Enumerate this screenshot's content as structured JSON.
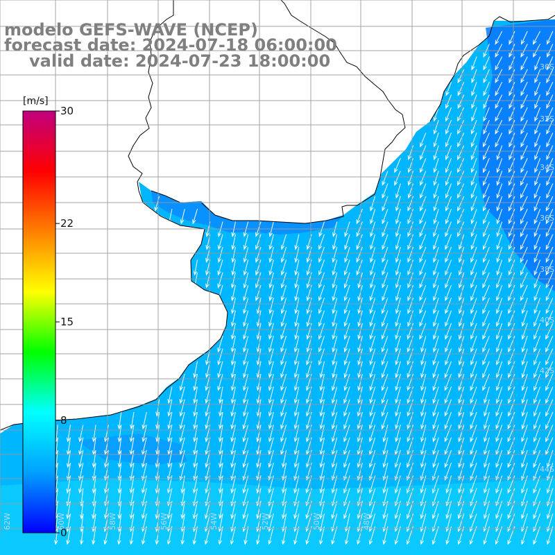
{
  "title": {
    "model": "modelo GEFS-WAVE (NCEP)",
    "forecast": "forecast date: 2024-07-18 06:00:00",
    "valid": "valid date: 2024-07-23 18:00:00"
  },
  "colorbar": {
    "unit": "[m/s]",
    "min": 0,
    "max": 30,
    "ticks": [
      {
        "label": "30",
        "value": 30
      },
      {
        "label": "22",
        "value": 22
      },
      {
        "label": "15",
        "value": 15
      },
      {
        "label": "8",
        "value": 8
      },
      {
        "label": "0",
        "value": 0
      }
    ],
    "colors": [
      "#0000ff",
      "#00a0ff",
      "#00ffff",
      "#00ff00",
      "#ffff00",
      "#ff8000",
      "#ff0000",
      "#c0007f"
    ]
  },
  "field": {
    "variable": "wind speed and direction",
    "typical_speed_ms": [
      4,
      8
    ],
    "dominant_flow": "toward south-southwest"
  },
  "map": {
    "ocean_color": "#00b6ff",
    "land_color": "#ffffff",
    "coastline_color": "#000000",
    "grid_color": "#9a9a9a",
    "vector_color": "#ffffff",
    "edge_labels_right": [
      "30S",
      "32S",
      "34S",
      "36S",
      "38S",
      "40S",
      "42S",
      "44S"
    ],
    "edge_labels_bottom": [
      "62W",
      "60W",
      "58W",
      "56W",
      "54W",
      "52W",
      "50W",
      "48W"
    ]
  }
}
